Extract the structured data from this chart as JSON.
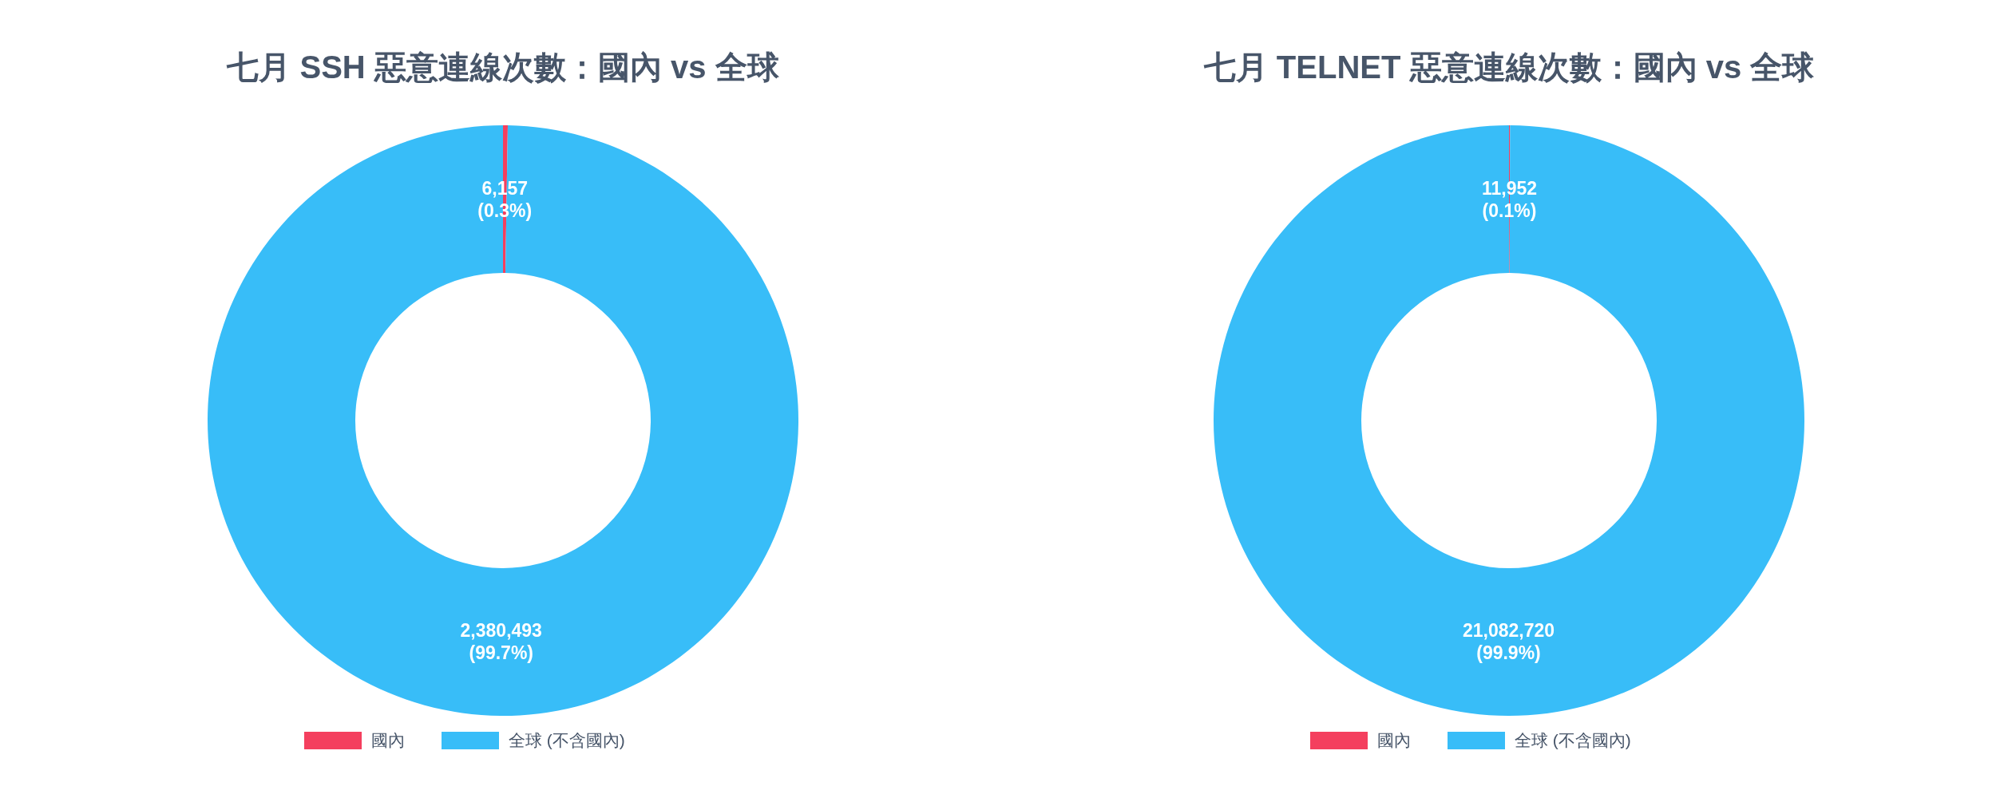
{
  "chart_data": [
    {
      "type": "donut",
      "title": "七月 SSH 惡意連線次數：國內 vs 全球",
      "categories": [
        "國內",
        "全球 (不含國內)"
      ],
      "values": [
        6157,
        2380493
      ],
      "colors": [
        "#f43f5e",
        "#38bdf8"
      ],
      "value_labels": [
        "6,157\n(0.3%)",
        "2,380,493\n(99.7%)"
      ],
      "legend": "bottom"
    },
    {
      "type": "donut",
      "title": "七月 TELNET 惡意連線次數：國內 vs 全球",
      "categories": [
        "國內",
        "全球 (不含國內)"
      ],
      "values": [
        11952,
        21082720
      ],
      "colors": [
        "#f43f5e",
        "#38bdf8"
      ],
      "value_labels": [
        "11,952\n(0.1%)",
        "21,082,720\n(99.9%)"
      ],
      "legend": "bottom"
    }
  ]
}
